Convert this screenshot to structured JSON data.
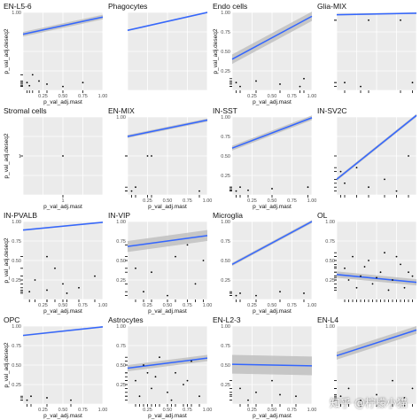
{
  "watermark": "知乎 @柠檬小猫",
  "chart_data": [
    {
      "type": "scatter",
      "title": "EN-L5-6",
      "xlabel": "p_val_adj.mast",
      "ylabel": "p_val_adj.deseq2",
      "xlim": [
        0,
        1
      ],
      "ylim": [
        0,
        1
      ],
      "xticks": [
        "0.25",
        "0.50",
        "0.75",
        "1.00"
      ],
      "yticks": [
        "1.00"
      ],
      "fit": {
        "y0": 0.72,
        "y1": 0.94,
        "band": 0.03
      },
      "points": [
        [
          0.05,
          0.1
        ],
        [
          0.08,
          0.06
        ],
        [
          0.2,
          0.12
        ],
        [
          0.5,
          0.05
        ],
        [
          0.75,
          0.1
        ],
        [
          0.12,
          0.2
        ],
        [
          0.3,
          0.08
        ]
      ]
    },
    {
      "type": "scatter",
      "title": "Phagocytes",
      "xlabel": "",
      "ylabel": "",
      "xlim": [
        0,
        1
      ],
      "ylim": [
        0,
        1
      ],
      "xticks": [],
      "yticks": [],
      "fit": {
        "y0": 0.77,
        "y1": 1.0,
        "band": 0.01
      },
      "points": []
    },
    {
      "type": "scatter",
      "title": "Endo cells",
      "xlabel": "p_val_adj.mast",
      "ylabel": "p_val_adj.deseq2",
      "xlim": [
        0,
        1
      ],
      "ylim": [
        0,
        1
      ],
      "xticks": [
        "0.25",
        "0.50",
        "0.75",
        "1.00"
      ],
      "yticks": [
        "1.00",
        "0.75",
        "0.50",
        "0.25"
      ],
      "fit": {
        "y0": 0.4,
        "y1": 0.95,
        "band": 0.06
      },
      "points": [
        [
          0.05,
          0.1
        ],
        [
          0.1,
          0.05
        ],
        [
          0.3,
          0.12
        ],
        [
          0.6,
          0.08
        ],
        [
          0.85,
          0.05
        ],
        [
          0.9,
          0.15
        ]
      ]
    },
    {
      "type": "scatter",
      "title": "Glia-MIX",
      "xlabel": "",
      "ylabel": "",
      "xlim": [
        0,
        1
      ],
      "ylim": [
        0,
        1
      ],
      "xticks": [],
      "yticks": [],
      "fit": {
        "y0": 0.97,
        "y1": 0.99,
        "band": 0.01
      },
      "points": [
        [
          0.1,
          0.1
        ],
        [
          0.3,
          0.05
        ],
        [
          0.4,
          0.9
        ],
        [
          0.8,
          0.9
        ],
        [
          0.95,
          0.1
        ]
      ]
    },
    {
      "type": "scatter",
      "title": "Stromal cells",
      "xlabel": "p_val_adj.mast",
      "ylabel": "p_val_adj.deseq2",
      "xlim": [
        0,
        2
      ],
      "ylim": [
        0,
        2
      ],
      "xticks": [
        "1"
      ],
      "yticks": [
        "1"
      ],
      "fit": null,
      "points": [
        [
          1,
          1
        ]
      ]
    },
    {
      "type": "scatter",
      "title": "EN-MIX",
      "xlabel": "p_val_adj.mast",
      "ylabel": "",
      "xlim": [
        0,
        1
      ],
      "ylim": [
        0,
        1
      ],
      "xticks": [
        "0.25",
        "0.50",
        "0.75",
        "1.00"
      ],
      "yticks": [
        "1.00"
      ],
      "fit": {
        "y0": 0.75,
        "y1": 0.96,
        "band": 0.02
      },
      "points": [
        [
          0.25,
          0.5
        ],
        [
          0.3,
          0.5
        ],
        [
          0.05,
          0.05
        ],
        [
          0.1,
          0.1
        ],
        [
          0.9,
          0.05
        ]
      ]
    },
    {
      "type": "scatter",
      "title": "IN-SST",
      "xlabel": "p_val_adj.mast",
      "ylabel": "",
      "xlim": [
        0,
        1
      ],
      "ylim": [
        0,
        1
      ],
      "xticks": [
        "0.25",
        "0.50",
        "0.75",
        "1.00"
      ],
      "yticks": [
        "1.00",
        "0.75",
        "0.50",
        "0.25"
      ],
      "fit": {
        "y0": 0.6,
        "y1": 0.99,
        "band": 0.03
      },
      "points": [
        [
          0.05,
          0.05
        ],
        [
          0.1,
          0.1
        ],
        [
          0.2,
          0.06
        ],
        [
          0.5,
          0.08
        ],
        [
          0.95,
          0.1
        ]
      ]
    },
    {
      "type": "scatter",
      "title": "IN-SV2C",
      "xlabel": "",
      "ylabel": "",
      "xlim": [
        0,
        1
      ],
      "ylim": [
        0,
        1
      ],
      "xticks": [],
      "yticks": [],
      "fit": {
        "y0": 0.2,
        "y1": 1.02,
        "band": 0.02
      },
      "points": [
        [
          0.05,
          0.3
        ],
        [
          0.1,
          0.15
        ],
        [
          0.25,
          0.35
        ],
        [
          0.4,
          0.1
        ],
        [
          0.6,
          0.2
        ],
        [
          0.75,
          0.05
        ],
        [
          0.9,
          0.5
        ]
      ]
    },
    {
      "type": "scatter",
      "title": "IN-PVALB",
      "xlabel": "p_val_adj.mast",
      "ylabel": "p_val_adj.deseq2",
      "xlim": [
        0,
        1
      ],
      "ylim": [
        0,
        1
      ],
      "xticks": [
        "0.25",
        "0.50",
        "0.75",
        "1.00"
      ],
      "yticks": [
        "1.00",
        "0.75",
        "0.50",
        "0.25"
      ],
      "fit": {
        "y0": 0.89,
        "y1": 0.99,
        "band": 0.01
      },
      "points": [
        [
          0.3,
          0.55
        ],
        [
          0.4,
          0.4
        ],
        [
          0.15,
          0.25
        ],
        [
          0.5,
          0.2
        ],
        [
          0.7,
          0.15
        ],
        [
          0.9,
          0.3
        ],
        [
          0.08,
          0.1
        ],
        [
          0.55,
          0.08
        ],
        [
          0.3,
          0.12
        ]
      ]
    },
    {
      "type": "scatter",
      "title": "IN-VIP",
      "xlabel": "p_val_adj.mast",
      "ylabel": "",
      "xlim": [
        0,
        1
      ],
      "ylim": [
        0,
        1
      ],
      "xticks": [
        "0.25",
        "0.50",
        "0.75",
        "1.00"
      ],
      "yticks": [
        "1.00",
        "0.75",
        "0.50",
        "0.25"
      ],
      "fit": {
        "y0": 0.68,
        "y1": 0.82,
        "band": 0.07
      },
      "points": [
        [
          0.1,
          0.4
        ],
        [
          0.3,
          0.35
        ],
        [
          0.6,
          0.55
        ],
        [
          0.75,
          0.7
        ],
        [
          0.2,
          0.1
        ],
        [
          0.5,
          0.05
        ],
        [
          0.85,
          0.2
        ],
        [
          0.95,
          0.5
        ]
      ]
    },
    {
      "type": "scatter",
      "title": "Microglia",
      "xlabel": "p_val_adj.mast",
      "ylabel": "",
      "xlim": [
        0,
        1
      ],
      "ylim": [
        0,
        1
      ],
      "xticks": [
        "0.25",
        "0.50",
        "0.75",
        "1.00"
      ],
      "yticks": [
        "1.00",
        "0.75",
        "0.50",
        "0.25"
      ],
      "fit": {
        "y0": 0.45,
        "y1": 1.0,
        "band": 0.02
      },
      "points": [
        [
          0.05,
          0.05
        ],
        [
          0.1,
          0.08
        ],
        [
          0.3,
          0.05
        ],
        [
          0.6,
          0.1
        ],
        [
          0.9,
          0.08
        ]
      ]
    },
    {
      "type": "scatter",
      "title": "OL",
      "xlabel": "",
      "ylabel": "",
      "xlim": [
        0,
        1
      ],
      "ylim": [
        0,
        1
      ],
      "xticks": [],
      "yticks": [
        "1.00",
        "0.75",
        "0.50",
        "0.25"
      ],
      "fit": {
        "y0": 0.32,
        "y1": 0.22,
        "band": 0.04
      },
      "points": [
        [
          0.1,
          0.4
        ],
        [
          0.2,
          0.55
        ],
        [
          0.3,
          0.3
        ],
        [
          0.4,
          0.5
        ],
        [
          0.45,
          0.2
        ],
        [
          0.55,
          0.35
        ],
        [
          0.6,
          0.6
        ],
        [
          0.7,
          0.25
        ],
        [
          0.8,
          0.45
        ],
        [
          0.85,
          0.15
        ],
        [
          0.9,
          0.35
        ],
        [
          0.25,
          0.15
        ],
        [
          0.15,
          0.25
        ],
        [
          0.65,
          0.12
        ],
        [
          0.35,
          0.42
        ],
        [
          0.5,
          0.28
        ],
        [
          0.75,
          0.55
        ],
        [
          0.95,
          0.3
        ]
      ]
    },
    {
      "type": "scatter",
      "title": "OPC",
      "xlabel": "p_val_adj.mast",
      "ylabel": "p_val_adj.deseq2",
      "xlim": [
        0,
        1
      ],
      "ylim": [
        0,
        1
      ],
      "xticks": [
        "0.25",
        "0.50",
        "0.75",
        "1.00"
      ],
      "yticks": [
        "1.00",
        "0.75",
        "0.50",
        "0.25"
      ],
      "fit": {
        "y0": 0.88,
        "y1": 0.99,
        "band": 0.01
      },
      "points": [
        [
          0.05,
          0.05
        ],
        [
          0.1,
          0.1
        ],
        [
          0.3,
          0.08
        ],
        [
          0.6,
          0.05
        ]
      ]
    },
    {
      "type": "scatter",
      "title": "Astrocytes",
      "xlabel": "p_val_adj.mast",
      "ylabel": "",
      "xlim": [
        0,
        1
      ],
      "ylim": [
        0,
        1
      ],
      "xticks": [
        "0.25",
        "0.50",
        "0.75",
        "1.00"
      ],
      "yticks": [
        "1.00",
        "0.75",
        "0.50",
        "0.25"
      ],
      "fit": {
        "y0": 0.46,
        "y1": 0.59,
        "band": 0.04
      },
      "points": [
        [
          0.1,
          0.3
        ],
        [
          0.2,
          0.5
        ],
        [
          0.3,
          0.2
        ],
        [
          0.4,
          0.6
        ],
        [
          0.5,
          0.15
        ],
        [
          0.6,
          0.4
        ],
        [
          0.7,
          0.25
        ],
        [
          0.8,
          0.55
        ],
        [
          0.9,
          0.1
        ],
        [
          0.15,
          0.1
        ],
        [
          0.55,
          0.05
        ],
        [
          0.35,
          0.35
        ],
        [
          0.75,
          0.3
        ],
        [
          0.25,
          0.4
        ]
      ]
    },
    {
      "type": "scatter",
      "title": "EN-L2-3",
      "xlabel": "p_val_adj.mast",
      "ylabel": "",
      "xlim": [
        0,
        1
      ],
      "ylim": [
        0,
        1
      ],
      "xticks": [
        "0.25",
        "0.50",
        "0.75",
        "1.00"
      ],
      "yticks": [
        "1.00",
        "0.75",
        "0.50",
        "0.25"
      ],
      "fit": {
        "y0": 0.51,
        "y1": 0.49,
        "band": 0.12
      },
      "points": [
        [
          0.1,
          0.2
        ],
        [
          0.3,
          0.15
        ],
        [
          0.5,
          0.3
        ],
        [
          0.8,
          0.1
        ],
        [
          0.2,
          0.05
        ],
        [
          0.6,
          0.12
        ]
      ]
    },
    {
      "type": "scatter",
      "title": "EN-L4",
      "xlabel": "",
      "ylabel": "",
      "xlim": [
        0,
        1
      ],
      "ylim": [
        0,
        1
      ],
      "xticks": [],
      "yticks": [
        "1.00"
      ],
      "fit": {
        "y0": 0.62,
        "y1": 0.95,
        "band": 0.05
      },
      "points": [
        [
          0.05,
          0.1
        ],
        [
          0.15,
          0.2
        ],
        [
          0.3,
          0.05
        ],
        [
          0.5,
          0.12
        ],
        [
          0.7,
          0.3
        ],
        [
          0.85,
          0.08
        ],
        [
          0.95,
          0.2
        ]
      ]
    }
  ]
}
